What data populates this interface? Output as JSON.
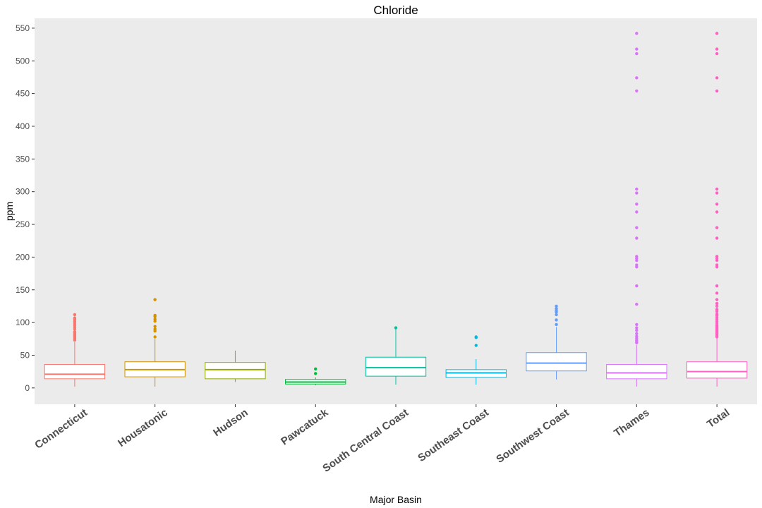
{
  "chart_data": {
    "type": "boxplot",
    "title": "Chloride",
    "xlabel": "Major Basin",
    "ylabel": "ppm",
    "ylim": [
      -25,
      565
    ],
    "yticks": [
      0,
      50,
      100,
      150,
      200,
      250,
      300,
      350,
      400,
      450,
      500,
      550
    ],
    "ytick_labels": [
      "0",
      "50",
      "100",
      "150",
      "200",
      "250",
      "300",
      "350",
      "400",
      "450",
      "500",
      "550"
    ],
    "grid": false,
    "background": "#EBEBEB",
    "categories": [
      "Connecticut",
      "Housatonic",
      "Hudson",
      "Pawcatuck",
      "South Central Coast",
      "Southeast Coast",
      "Southwest Coast",
      "Thames",
      "Total"
    ],
    "colors": [
      "#F8766D",
      "#D39200",
      "#93AA00",
      "#00BA38",
      "#00C19F",
      "#00B9E3",
      "#619CFF",
      "#DB72FB",
      "#FF61C3"
    ],
    "boxes": [
      {
        "min": 2,
        "q1": 14,
        "median": 21,
        "q3": 36,
        "max": 70,
        "outliers": [
          73,
          75,
          77,
          79,
          80,
          82,
          84,
          86,
          90,
          93,
          96,
          99,
          102,
          105,
          107,
          112
        ]
      },
      {
        "min": 2,
        "q1": 17,
        "median": 28,
        "q3": 40,
        "max": 75,
        "outliers": [
          78,
          87,
          90,
          94,
          102,
          105,
          109,
          111,
          135
        ]
      },
      {
        "min": 9,
        "q1": 14,
        "median": 28,
        "q3": 39,
        "max": 57,
        "outliers": []
      },
      {
        "min": 4,
        "q1": 6,
        "median": 9,
        "q3": 13,
        "max": 16,
        "outliers": [
          22,
          29
        ]
      },
      {
        "min": 5,
        "q1": 18,
        "median": 31,
        "q3": 47,
        "max": 90,
        "outliers": [
          92
        ]
      },
      {
        "min": 5,
        "q1": 16,
        "median": 23,
        "q3": 28,
        "max": 44,
        "outliers": [
          65,
          77,
          78
        ]
      },
      {
        "min": 13,
        "q1": 26,
        "median": 38,
        "q3": 54,
        "max": 93,
        "outliers": [
          97,
          104,
          112,
          116,
          118,
          121,
          125
        ]
      },
      {
        "min": 2,
        "q1": 14,
        "median": 23,
        "q3": 36,
        "max": 66,
        "outliers": [
          69,
          71,
          73,
          76,
          79,
          83,
          88,
          92,
          97,
          128,
          156,
          185,
          188,
          195,
          198,
          201,
          229,
          245,
          269,
          281,
          298,
          304,
          454,
          474,
          511,
          518,
          542
        ]
      },
      {
        "min": 2,
        "q1": 15,
        "median": 25,
        "q3": 40,
        "max": 76,
        "outliers": [
          78,
          80,
          82,
          84,
          86,
          88,
          90,
          92,
          94,
          96,
          99,
          102,
          105,
          108,
          111,
          113,
          117,
          120,
          125,
          129,
          135,
          145,
          156,
          185,
          188,
          195,
          198,
          201,
          229,
          245,
          269,
          281,
          298,
          304,
          454,
          474,
          511,
          518,
          542
        ]
      }
    ]
  }
}
